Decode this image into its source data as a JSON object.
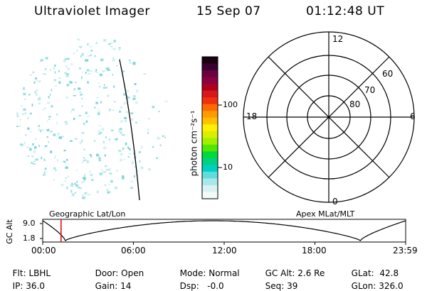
{
  "header": {
    "title": "Ultraviolet Imager",
    "date": "15 Sep 07",
    "time": "01:12:48 UT"
  },
  "colorbar": {
    "label": "photon cm⁻²s⁻¹",
    "ticks": [
      "100",
      "10"
    ],
    "colors": [
      "#1a0010",
      "#3a0030",
      "#6a0040",
      "#8a0040",
      "#b00020",
      "#d81818",
      "#f03010",
      "#ff6a00",
      "#ff9a00",
      "#ffc000",
      "#fff000",
      "#d8f000",
      "#a0f000",
      "#50e800",
      "#00d840",
      "#00d080",
      "#00d0c0",
      "#60dcdc",
      "#a8e8e8",
      "#d8f2f2",
      "#f2fafa"
    ]
  },
  "polar_plot": {
    "mlt_labels": {
      "top": "12",
      "right": "6",
      "bottom": "0",
      "left": "18"
    },
    "lat_labels": [
      "60",
      "70",
      "80"
    ]
  },
  "altitude_panel": {
    "left_label": "Geographic Lat/Lon",
    "right_label": "Apex MLat/MLT",
    "y_axis_label": "GC Alt",
    "y_ticks": [
      "9.0",
      "1.8"
    ],
    "x_ticks": [
      "00:00",
      "06:00",
      "12:00",
      "18:00",
      "23:59"
    ],
    "current_time_hours": 1.213,
    "marker_color": "#e00000"
  },
  "info": {
    "row1": [
      {
        "key": "Flt:",
        "value": "LBHL"
      },
      {
        "key": "Door:",
        "value": "Open"
      },
      {
        "key": "Mode:",
        "value": "Normal"
      },
      {
        "key": "GC Alt:",
        "value": "2.6 Re"
      },
      {
        "key": "GLat:",
        "value": "42.8"
      }
    ],
    "row2": [
      {
        "key": "IP:",
        "value": "36.0"
      },
      {
        "key": "Gain:",
        "value": "14"
      },
      {
        "key": "Dsp:",
        "value": "-0.0"
      },
      {
        "key": "Seq:",
        "value": "39"
      },
      {
        "key": "GLon:",
        "value": "326.0"
      }
    ]
  }
}
